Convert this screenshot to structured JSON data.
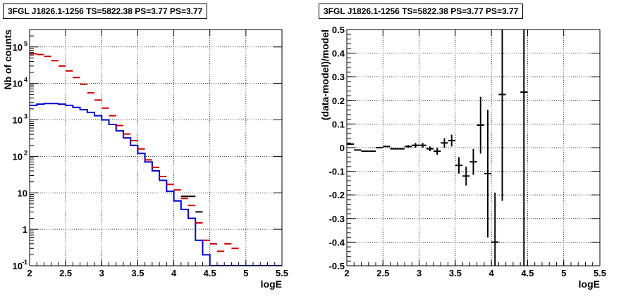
{
  "chart_data": [
    {
      "type": "histogram",
      "title": "3FGL J1826.1-1256 TS=5822.38 PS=3.77 PS=3.77",
      "xlabel": "logE",
      "ylabel": "Nb of counts",
      "xlim": [
        2,
        5.5
      ],
      "ylim": [
        0.1,
        300000
      ],
      "yscale": "log",
      "grid": true,
      "xticks": [
        "2",
        "2.5",
        "3",
        "3.5",
        "4",
        "4.5",
        "5",
        "5.5"
      ],
      "yticks": [
        "10^-1",
        "1",
        "10",
        "10^2",
        "10^3",
        "10^4",
        "10^5"
      ],
      "bin_width": 0.1,
      "series": [
        {
          "color": "#0000cc",
          "style": "step",
          "x": [
            2.05,
            2.15,
            2.25,
            2.35,
            2.45,
            2.55,
            2.65,
            2.75,
            2.85,
            2.95,
            3.05,
            3.15,
            3.25,
            3.35,
            3.45,
            3.55,
            3.65,
            3.75,
            3.85,
            3.95,
            4.05,
            4.15,
            4.25,
            4.35,
            4.45,
            4.55,
            4.65,
            4.75,
            4.85,
            4.95,
            5.05,
            5.15,
            5.25,
            5.35,
            5.45
          ],
          "y": [
            2500,
            2700,
            2800,
            2800,
            2700,
            2500,
            2200,
            1900,
            1600,
            1300,
            1000,
            750,
            500,
            320,
            200,
            120,
            70,
            40,
            22,
            11,
            6,
            3.5,
            2,
            0.5,
            0.2,
            0.1,
            0.1,
            0.1,
            0.1,
            0.1,
            0.1,
            0.1,
            0.1,
            0.1,
            0.1
          ]
        },
        {
          "color": "#cc0000",
          "style": "errorbar",
          "x": [
            2.05,
            2.15,
            2.25,
            2.35,
            2.45,
            2.55,
            2.65,
            2.75,
            2.85,
            2.95,
            3.05,
            3.15,
            3.25,
            3.35,
            3.45,
            3.55,
            3.65,
            3.75,
            3.85,
            3.95,
            4.05,
            4.15,
            4.25,
            4.35,
            4.45,
            4.55,
            4.65,
            4.75,
            4.85
          ],
          "y": [
            65000,
            62000,
            55000,
            42000,
            30000,
            22000,
            14500,
            9500,
            5500,
            3500,
            2100,
            1300,
            700,
            410,
            270,
            160,
            80,
            50,
            28,
            17,
            12,
            7,
            4.5,
            1.5,
            0.5,
            0.4,
            0.25,
            0.4,
            0.3
          ],
          "yerr_low": [
            0,
            0,
            0,
            0,
            0,
            0,
            0,
            0,
            0,
            0,
            0,
            0,
            0,
            0,
            0,
            0,
            0,
            0,
            0,
            0,
            0,
            0,
            0,
            0,
            0,
            0,
            0,
            0,
            0
          ],
          "yerr_high": [
            0,
            0,
            0,
            0,
            0,
            0,
            0,
            0,
            0,
            0,
            0,
            0,
            0,
            0,
            0,
            0,
            0,
            0,
            0,
            0,
            0,
            0,
            0,
            0,
            0,
            0,
            0,
            0,
            0
          ]
        },
        {
          "color": "#000000",
          "style": "errorbar",
          "x": [
            4.15,
            4.25,
            4.35
          ],
          "y": [
            8,
            8,
            3
          ],
          "yerr_low": [
            0,
            0,
            0
          ],
          "yerr_high": [
            0,
            0,
            0
          ]
        }
      ]
    },
    {
      "type": "errorbar",
      "title": "3FGL J1826.1-1256 TS=5822.38 PS=3.77 PS=3.77",
      "xlabel": "logE",
      "ylabel": "(data-model)/model",
      "xlim": [
        2,
        5.5
      ],
      "ylim": [
        -0.5,
        0.5
      ],
      "grid": true,
      "xticks": [
        "2",
        "2.5",
        "3",
        "3.5",
        "4",
        "4.5",
        "5",
        "5.5"
      ],
      "yticks": [
        "-0.5",
        "-0.4",
        "-0.3",
        "-0.2",
        "-0.1",
        "0",
        "0.1",
        "0.2",
        "0.3",
        "0.4",
        "0.5"
      ],
      "bin_width": 0.1,
      "series": [
        {
          "color": "#000000",
          "x": [
            2.05,
            2.15,
            2.25,
            2.35,
            2.45,
            2.55,
            2.65,
            2.75,
            2.85,
            2.95,
            3.05,
            3.15,
            3.25,
            3.35,
            3.45,
            3.55,
            3.65,
            3.75,
            3.85,
            3.95,
            4.05,
            4.15,
            4.45
          ],
          "y": [
            0.015,
            -0.01,
            -0.015,
            -0.015,
            0.0,
            0.005,
            -0.005,
            -0.005,
            0.005,
            0.01,
            0.01,
            -0.005,
            -0.015,
            0.02,
            0.03,
            -0.075,
            -0.12,
            -0.06,
            0.095,
            -0.11,
            -0.4,
            0.225,
            0.235
          ],
          "yerr_low": [
            0,
            0,
            0,
            0,
            0,
            0,
            0,
            0,
            0.006,
            0.01,
            0.01,
            0.01,
            0.015,
            0.02,
            0.025,
            0.035,
            0.04,
            0.055,
            0.12,
            0.27,
            0.4,
            0.45,
            1.0
          ],
          "yerr_high": [
            0,
            0,
            0,
            0,
            0,
            0,
            0,
            0,
            0.006,
            0.01,
            0.01,
            0.01,
            0.015,
            0.02,
            0.025,
            0.035,
            0.04,
            0.055,
            0.12,
            0.27,
            0.21,
            0.45,
            1.0
          ]
        }
      ]
    }
  ]
}
